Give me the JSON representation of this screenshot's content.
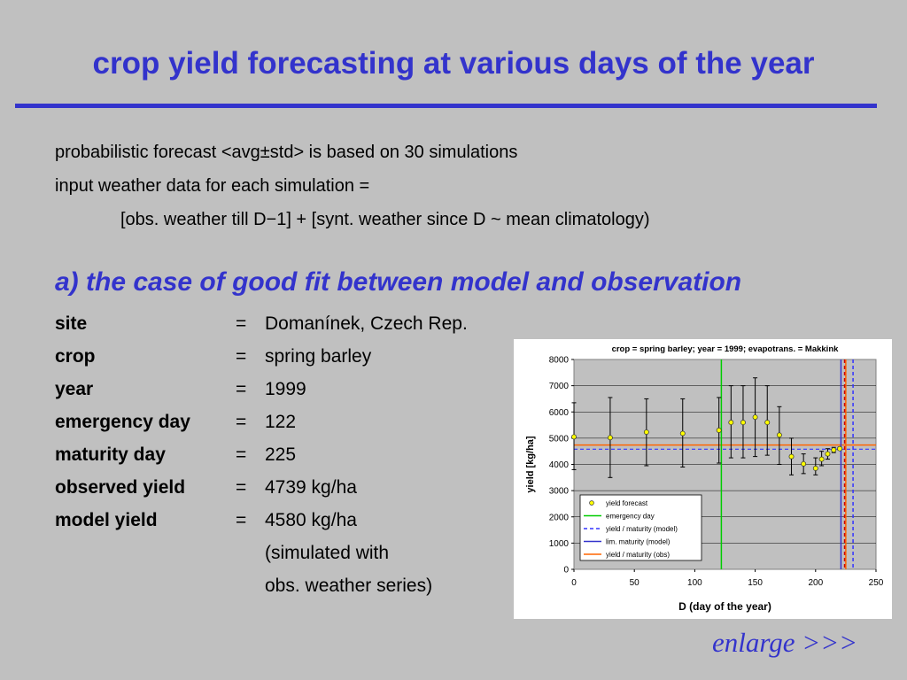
{
  "slide": {
    "title": "crop yield forecasting at various days of the year",
    "intro_lines": [
      "probabilistic forecast <avg±std> is based on 30 simulations",
      "input weather data for each simulation =",
      "[obs. weather till D−1] + [synt. weather since D ~ mean climatology)"
    ],
    "subtitle": "a) the case of good fit between model and observation",
    "params": [
      {
        "label": "site",
        "eq": "=",
        "value": "Domanínek, Czech Rep."
      },
      {
        "label": "crop",
        "eq": "=",
        "value": "spring barley"
      },
      {
        "label": "year",
        "eq": "=",
        "value": "1999"
      },
      {
        "label": "emergency day",
        "eq": "=",
        "value": "122"
      },
      {
        "label": "maturity day",
        "eq": "=",
        "value": "225"
      },
      {
        "label": "observed yield",
        "eq": "=",
        "value": "4739  kg/ha"
      },
      {
        "label": "model yield",
        "eq": "=",
        "value": "4580  kg/ha"
      },
      {
        "label": "",
        "eq": "",
        "value": "(simulated with"
      },
      {
        "label": "",
        "eq": "",
        "value": "obs. weather series)"
      }
    ],
    "enlarge_link": "enlarge >>>"
  },
  "chart_data": {
    "type": "scatter",
    "title": "crop = spring barley; year = 1999; evapotrans. = Makkink",
    "xlabel": "D  (day of the year)",
    "ylabel": "yield  [kg/ha]",
    "xlim": [
      0,
      250
    ],
    "ylim": [
      0,
      8000
    ],
    "x_ticks": [
      0,
      50,
      100,
      150,
      200,
      250
    ],
    "y_ticks": [
      0,
      1000,
      2000,
      3000,
      4000,
      5000,
      6000,
      7000,
      8000
    ],
    "grid": "horizontal",
    "legend_position": "bottom-left",
    "forecast": {
      "name": "yield forecast",
      "color": "#ffff00",
      "points": [
        {
          "x": 0,
          "y": 5050,
          "lo": 3800,
          "hi": 6350
        },
        {
          "x": 30,
          "y": 5020,
          "lo": 3500,
          "hi": 6550
        },
        {
          "x": 60,
          "y": 5230,
          "lo": 3950,
          "hi": 6500
        },
        {
          "x": 90,
          "y": 5180,
          "lo": 3900,
          "hi": 6500
        },
        {
          "x": 120,
          "y": 5300,
          "lo": 4050,
          "hi": 6550
        },
        {
          "x": 130,
          "y": 5600,
          "lo": 4250,
          "hi": 7000
        },
        {
          "x": 140,
          "y": 5600,
          "lo": 4250,
          "hi": 7000
        },
        {
          "x": 150,
          "y": 5800,
          "lo": 4300,
          "hi": 7300
        },
        {
          "x": 160,
          "y": 5600,
          "lo": 4350,
          "hi": 7000
        },
        {
          "x": 170,
          "y": 5120,
          "lo": 4000,
          "hi": 6200
        },
        {
          "x": 180,
          "y": 4300,
          "lo": 3600,
          "hi": 5000
        },
        {
          "x": 190,
          "y": 4020,
          "lo": 3650,
          "hi": 4400
        },
        {
          "x": 200,
          "y": 3850,
          "lo": 3600,
          "hi": 4250
        },
        {
          "x": 205,
          "y": 4200,
          "lo": 3950,
          "hi": 4500
        },
        {
          "x": 210,
          "y": 4400,
          "lo": 4200,
          "hi": 4600
        },
        {
          "x": 215,
          "y": 4550,
          "lo": 4450,
          "hi": 4650
        },
        {
          "x": 220,
          "y": 4600,
          "lo": 4550,
          "hi": 4650
        }
      ]
    },
    "lines": [
      {
        "name": "emergency day",
        "orientation": "vertical",
        "value": 122,
        "color": "#00cc00",
        "style": "solid"
      },
      {
        "name": "yield / maturity (model)",
        "orientation": "both",
        "x": 231,
        "y": 4580,
        "color": "#3333ff",
        "style": "dashed"
      },
      {
        "name": "lim. maturity (model)",
        "orientation": "vertical",
        "value": 221,
        "color": "#3333cc",
        "style": "solid"
      },
      {
        "name": "yield / maturity (obs)",
        "orientation": "both",
        "x": 225,
        "y": 4739,
        "color": "#ff6600",
        "style": "solid"
      }
    ],
    "extra_vertical": [
      {
        "value": 224,
        "color": "#cc0000",
        "style": "dashed"
      }
    ]
  }
}
